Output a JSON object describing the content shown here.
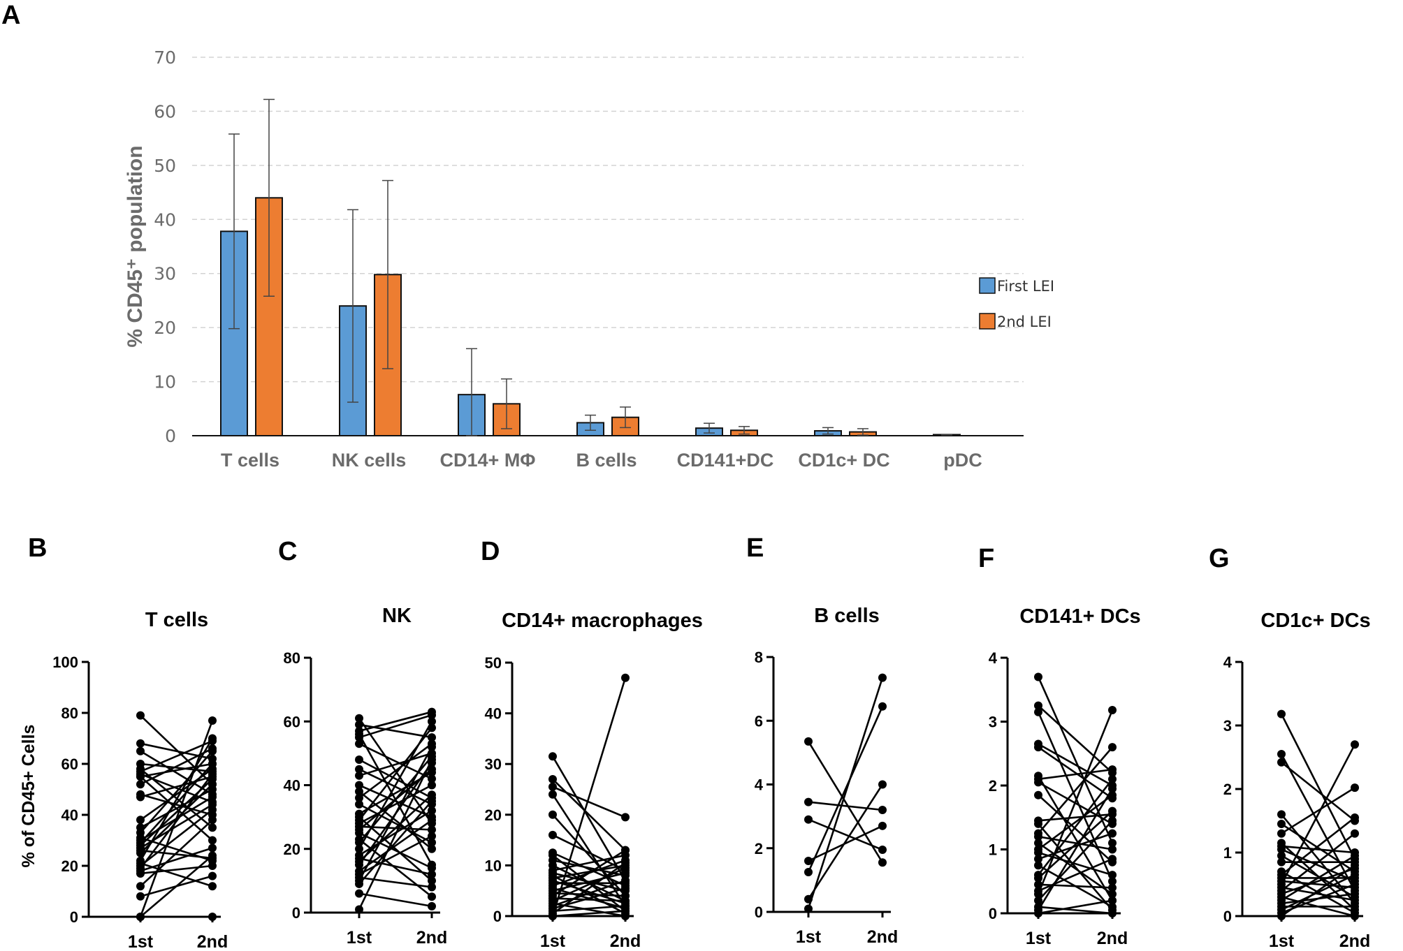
{
  "chart_data": [
    {
      "panel": "A",
      "type": "bar",
      "ylabel": "% CD45⁺ population",
      "ylim": [
        0,
        70
      ],
      "yticks": [
        0,
        10,
        20,
        30,
        40,
        50,
        60,
        70
      ],
      "grid": true,
      "legend_position": "right",
      "categories": [
        "T cells",
        "NK cells",
        "CD14+ MΦ",
        "B cells",
        "CD141+DC",
        "CD1c+ DC",
        "pDC"
      ],
      "series": [
        {
          "name": "First LEI",
          "color": "#5b9bd5",
          "values": [
            37.8,
            24.0,
            7.6,
            2.4,
            1.4,
            0.9,
            0.2
          ],
          "errors": [
            18.0,
            17.8,
            8.5,
            1.4,
            0.9,
            0.6,
            0.05
          ]
        },
        {
          "name": "2nd LEI",
          "color": "#ed7d31",
          "values": [
            44.0,
            29.8,
            5.9,
            3.4,
            1.0,
            0.7,
            0.0
          ],
          "errors": [
            18.2,
            17.4,
            4.6,
            1.9,
            0.7,
            0.6,
            0.0
          ]
        }
      ]
    },
    {
      "panel": "B",
      "type": "line",
      "title": "T cells",
      "ylabel": "% of CD45+ Cells",
      "categories": [
        "1st",
        "2nd"
      ],
      "ylim": [
        0,
        100
      ],
      "yticks": [
        0,
        20,
        40,
        60,
        80,
        100
      ],
      "pairs": [
        [
          79,
          52
        ],
        [
          68,
          62
        ],
        [
          65,
          48
        ],
        [
          60,
          57
        ],
        [
          58,
          35
        ],
        [
          57,
          69
        ],
        [
          56,
          45
        ],
        [
          55,
          60
        ],
        [
          55,
          30
        ],
        [
          52,
          66
        ],
        [
          48,
          40
        ],
        [
          47,
          55
        ],
        [
          38,
          58
        ],
        [
          35,
          50
        ],
        [
          33,
          65
        ],
        [
          31,
          22
        ],
        [
          30,
          47
        ],
        [
          29,
          60
        ],
        [
          28,
          54
        ],
        [
          27,
          44
        ],
        [
          26,
          23
        ],
        [
          25,
          52
        ],
        [
          22,
          70
        ],
        [
          21,
          12
        ],
        [
          20,
          42
        ],
        [
          19,
          56
        ],
        [
          18,
          27
        ],
        [
          17,
          20
        ],
        [
          12,
          38
        ],
        [
          8,
          16
        ],
        [
          0,
          77
        ],
        [
          0,
          24
        ],
        [
          0,
          0
        ]
      ]
    },
    {
      "panel": "C",
      "type": "line",
      "title": "NK",
      "categories": [
        "1st",
        "2nd"
      ],
      "ylim": [
        0,
        80
      ],
      "yticks": [
        0,
        20,
        40,
        60,
        80
      ],
      "pairs": [
        [
          61,
          28
        ],
        [
          59,
          55
        ],
        [
          57,
          63
        ],
        [
          56,
          15
        ],
        [
          55,
          62
        ],
        [
          53,
          42
        ],
        [
          48,
          36
        ],
        [
          45,
          34
        ],
        [
          43,
          50
        ],
        [
          40,
          30
        ],
        [
          38,
          20
        ],
        [
          36,
          53
        ],
        [
          34,
          22
        ],
        [
          31,
          44
        ],
        [
          30,
          10
        ],
        [
          29,
          58
        ],
        [
          28,
          40
        ],
        [
          27,
          26
        ],
        [
          26,
          45
        ],
        [
          25,
          14
        ],
        [
          23,
          5
        ],
        [
          22,
          49
        ],
        [
          20,
          60
        ],
        [
          18,
          32
        ],
        [
          17,
          12
        ],
        [
          16,
          37
        ],
        [
          15,
          47
        ],
        [
          13,
          29
        ],
        [
          12,
          24
        ],
        [
          11,
          8
        ],
        [
          10,
          52
        ],
        [
          9,
          35
        ],
        [
          6,
          2
        ],
        [
          1,
          48
        ]
      ]
    },
    {
      "panel": "D",
      "type": "line",
      "title": "CD14+ macrophages",
      "categories": [
        "1st",
        "2nd"
      ],
      "ylim": [
        0,
        50
      ],
      "yticks": [
        0,
        10,
        20,
        30,
        40,
        50
      ],
      "pairs": [
        [
          31.5,
          7
        ],
        [
          27,
          13
        ],
        [
          25.5,
          19.5
        ],
        [
          24,
          2
        ],
        [
          20,
          4
        ],
        [
          16,
          9
        ],
        [
          12.5,
          6
        ],
        [
          12,
          1
        ],
        [
          11,
          8
        ],
        [
          10,
          3
        ],
        [
          9,
          12
        ],
        [
          8.5,
          5
        ],
        [
          8,
          0.5
        ],
        [
          7.5,
          10
        ],
        [
          7,
          2.5
        ],
        [
          6.5,
          6.5
        ],
        [
          6,
          11
        ],
        [
          5.5,
          1.5
        ],
        [
          5,
          8.5
        ],
        [
          4.5,
          4
        ],
        [
          4,
          13
        ],
        [
          3.5,
          3
        ],
        [
          3,
          9.5
        ],
        [
          2.5,
          0
        ],
        [
          2,
          7
        ],
        [
          1.5,
          5.5
        ],
        [
          1,
          2
        ],
        [
          0.5,
          10.5
        ],
        [
          0,
          47
        ],
        [
          0,
          1
        ]
      ]
    },
    {
      "panel": "E",
      "type": "line",
      "title": "B cells",
      "categories": [
        "1st",
        "2nd"
      ],
      "ylim": [
        0,
        8
      ],
      "yticks": [
        0,
        2,
        4,
        6,
        8
      ],
      "pairs": [
        [
          5.35,
          1.55
        ],
        [
          3.45,
          3.2
        ],
        [
          2.9,
          1.95
        ],
        [
          1.6,
          2.7
        ],
        [
          1.25,
          6.45
        ],
        [
          0.4,
          4.0
        ],
        [
          0.1,
          7.35
        ]
      ]
    },
    {
      "panel": "F",
      "type": "line",
      "title": "CD141+ DCs",
      "categories": [
        "1st",
        "2nd"
      ],
      "ylim": [
        0,
        4
      ],
      "yticks": [
        0,
        1,
        2,
        3,
        4
      ],
      "pairs": [
        [
          3.7,
          1.1
        ],
        [
          3.25,
          2.2
        ],
        [
          3.15,
          0.5
        ],
        [
          2.65,
          2.0
        ],
        [
          2.6,
          1.8
        ],
        [
          2.15,
          0.2
        ],
        [
          2.1,
          2.25
        ],
        [
          2.05,
          1.4
        ],
        [
          1.85,
          0.8
        ],
        [
          1.45,
          1.55
        ],
        [
          1.4,
          0.05
        ],
        [
          1.25,
          2.6
        ],
        [
          1.2,
          1.0
        ],
        [
          1.1,
          0.3
        ],
        [
          1.0,
          1.85
        ],
        [
          0.95,
          0.6
        ],
        [
          0.85,
          1.25
        ],
        [
          0.75,
          0.1
        ],
        [
          0.6,
          2.1
        ],
        [
          0.55,
          1.6
        ],
        [
          0.45,
          0.4
        ],
        [
          0.35,
          0.85
        ],
        [
          0.3,
          3.18
        ],
        [
          0.2,
          1.45
        ],
        [
          0.1,
          0.0
        ],
        [
          0.05,
          1.95
        ],
        [
          0.0,
          0.2
        ]
      ]
    },
    {
      "panel": "G",
      "type": "line",
      "title": "CD1c+ DCs",
      "categories": [
        "1st",
        "2nd"
      ],
      "ylim": [
        0,
        4
      ],
      "yticks": [
        0,
        1,
        2,
        3,
        4
      ],
      "pairs": [
        [
          3.18,
          0.9
        ],
        [
          2.55,
          0.4
        ],
        [
          2.42,
          1.5
        ],
        [
          1.6,
          0.2
        ],
        [
          1.45,
          0.7
        ],
        [
          1.3,
          2.02
        ],
        [
          1.15,
          0.1
        ],
        [
          1.1,
          1.0
        ],
        [
          1.05,
          0.55
        ],
        [
          0.95,
          0.3
        ],
        [
          0.85,
          0.85
        ],
        [
          0.7,
          0.05
        ],
        [
          0.65,
          1.55
        ],
        [
          0.6,
          0.6
        ],
        [
          0.55,
          0.45
        ],
        [
          0.5,
          2.7
        ],
        [
          0.45,
          0.25
        ],
        [
          0.4,
          1.3
        ],
        [
          0.35,
          0.75
        ],
        [
          0.3,
          0.0
        ],
        [
          0.25,
          0.95
        ],
        [
          0.2,
          0.35
        ],
        [
          0.15,
          0.15
        ],
        [
          0.1,
          0.65
        ],
        [
          0.05,
          0.5
        ],
        [
          0.0,
          0.8
        ]
      ]
    }
  ]
}
